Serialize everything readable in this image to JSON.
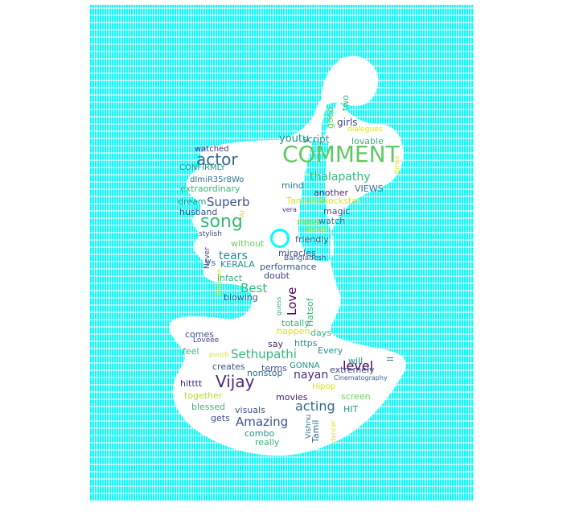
{
  "colors": {
    "background": "#00ffff",
    "silhouette": "#ffffff",
    "purple": "#482878",
    "dark_purple": "#440154",
    "blue": "#31688e",
    "teal": "#21918c",
    "green": "#35b779",
    "light_green": "#6ece58",
    "yellow": "#b5de2b",
    "bright_yellow": "#d8e219"
  },
  "words": [
    {
      "text": "COMMENT",
      "color": "#5ec962"
    },
    {
      "text": "song",
      "color": "#35b779"
    },
    {
      "text": "actor",
      "color": "#31688e"
    },
    {
      "text": "thalapathy",
      "color": "#35b779"
    },
    {
      "text": "Superb",
      "color": "#3b528b"
    },
    {
      "text": "Vijay",
      "color": "#482878"
    },
    {
      "text": "Amazing",
      "color": "#3b528b"
    },
    {
      "text": "acting",
      "color": "#31688e"
    },
    {
      "text": "Sethupathi",
      "color": "#35b779"
    },
    {
      "text": "level",
      "color": "#440154"
    },
    {
      "text": "nayan",
      "color": "#482878"
    },
    {
      "text": "Best",
      "color": "#35b779"
    },
    {
      "text": "tears",
      "color": "#21918c"
    },
    {
      "text": "Love",
      "color": "#440154"
    },
    {
      "text": "youtu",
      "color": "#21918c"
    },
    {
      "text": "girls",
      "color": "#414487"
    },
    {
      "text": "script",
      "color": "#21918c"
    },
    {
      "text": "lovable",
      "color": "#35b779"
    },
    {
      "text": "good",
      "color": "#6ece58"
    },
    {
      "text": "two",
      "color": "#35b779"
    },
    {
      "text": "dialogues",
      "color": "#d8e219"
    },
    {
      "text": "times",
      "color": "#d8e219"
    },
    {
      "text": "watched",
      "color": "#482878"
    },
    {
      "text": "CONFIRMLY",
      "color": "#21918c"
    },
    {
      "text": "dImiR35r8Wo",
      "color": "#2c728e"
    },
    {
      "text": "extraordinary",
      "color": "#35b779"
    },
    {
      "text": "mind",
      "color": "#2c728e"
    },
    {
      "text": "another",
      "color": "#482878"
    },
    {
      "text": "VIEWS",
      "color": "#31688e"
    },
    {
      "text": "TamizhaRockstar",
      "color": "#d8e219"
    },
    {
      "text": "dream",
      "color": "#21918c"
    },
    {
      "text": "husband",
      "color": "#3b528b"
    },
    {
      "text": "Ar",
      "color": "#d8e219"
    },
    {
      "text": "vera",
      "color": "#482878"
    },
    {
      "text": "magic",
      "color": "#3b528b"
    },
    {
      "text": "mass",
      "color": "#b5de2b"
    },
    {
      "text": "watch",
      "color": "#2c728e"
    },
    {
      "text": "bored",
      "color": "#d8e219"
    },
    {
      "text": "stylish",
      "color": "#414487"
    },
    {
      "text": "friendly",
      "color": "#3b528b"
    },
    {
      "text": "without",
      "color": "#6ece58"
    },
    {
      "text": "miracles",
      "color": "#3b528b"
    },
    {
      "text": "Bangladesh",
      "color": "#3b528b"
    },
    {
      "text": "Never",
      "color": "#414487"
    },
    {
      "text": "Vs",
      "color": "#31688e"
    },
    {
      "text": "KERALA",
      "color": "#21918c"
    },
    {
      "text": "performance",
      "color": "#3b528b"
    },
    {
      "text": "Rahman",
      "color": "#d8e219"
    },
    {
      "text": "infact",
      "color": "#35b779"
    },
    {
      "text": "doubt",
      "color": "#414487"
    },
    {
      "text": "blowing",
      "color": "#3b528b"
    },
    {
      "text": "Hatsof",
      "color": "#35b779"
    },
    {
      "text": "guess",
      "color": "#35b779"
    },
    {
      "text": "totally",
      "color": "#35b779"
    },
    {
      "text": "happen",
      "color": "#d8e219"
    },
    {
      "text": "days",
      "color": "#35b779"
    },
    {
      "text": "comes",
      "color": "#3b528b"
    },
    {
      "text": "say",
      "color": "#482878"
    },
    {
      "text": "https",
      "color": "#21918c"
    },
    {
      "text": "Loveee",
      "color": "#414487"
    },
    {
      "text": "feel",
      "color": "#35b779"
    },
    {
      "text": "punch",
      "color": "#d8e219"
    },
    {
      "text": "Every",
      "color": "#21918c"
    },
    {
      "text": "will",
      "color": "#21918c"
    },
    {
      "text": "ll",
      "color": "#31688e"
    },
    {
      "text": "creates",
      "color": "#3b528b"
    },
    {
      "text": "GONNA",
      "color": "#21918c"
    },
    {
      "text": "extremely",
      "color": "#414487"
    },
    {
      "text": "nonstop",
      "color": "#31688e"
    },
    {
      "text": "Cinematography",
      "color": "#31688e"
    },
    {
      "text": "hitttt",
      "color": "#482878"
    },
    {
      "text": "terms",
      "color": "#3b528b"
    },
    {
      "text": "Hipop",
      "color": "#d8e219"
    },
    {
      "text": "together",
      "color": "#b5de2b"
    },
    {
      "text": "movies",
      "color": "#482878"
    },
    {
      "text": "screen",
      "color": "#6ece58"
    },
    {
      "text": "blessed",
      "color": "#35b779"
    },
    {
      "text": "HIT",
      "color": "#21918c"
    },
    {
      "text": "gets",
      "color": "#3b528b"
    },
    {
      "text": "visuals",
      "color": "#3b528b"
    },
    {
      "text": "Vishnu",
      "color": "#31688e"
    },
    {
      "text": "Tamil",
      "color": "#2c728e"
    },
    {
      "text": "dancer",
      "color": "#d8e219"
    },
    {
      "text": "combo",
      "color": "#21918c"
    },
    {
      "text": "really",
      "color": "#35b779"
    }
  ]
}
